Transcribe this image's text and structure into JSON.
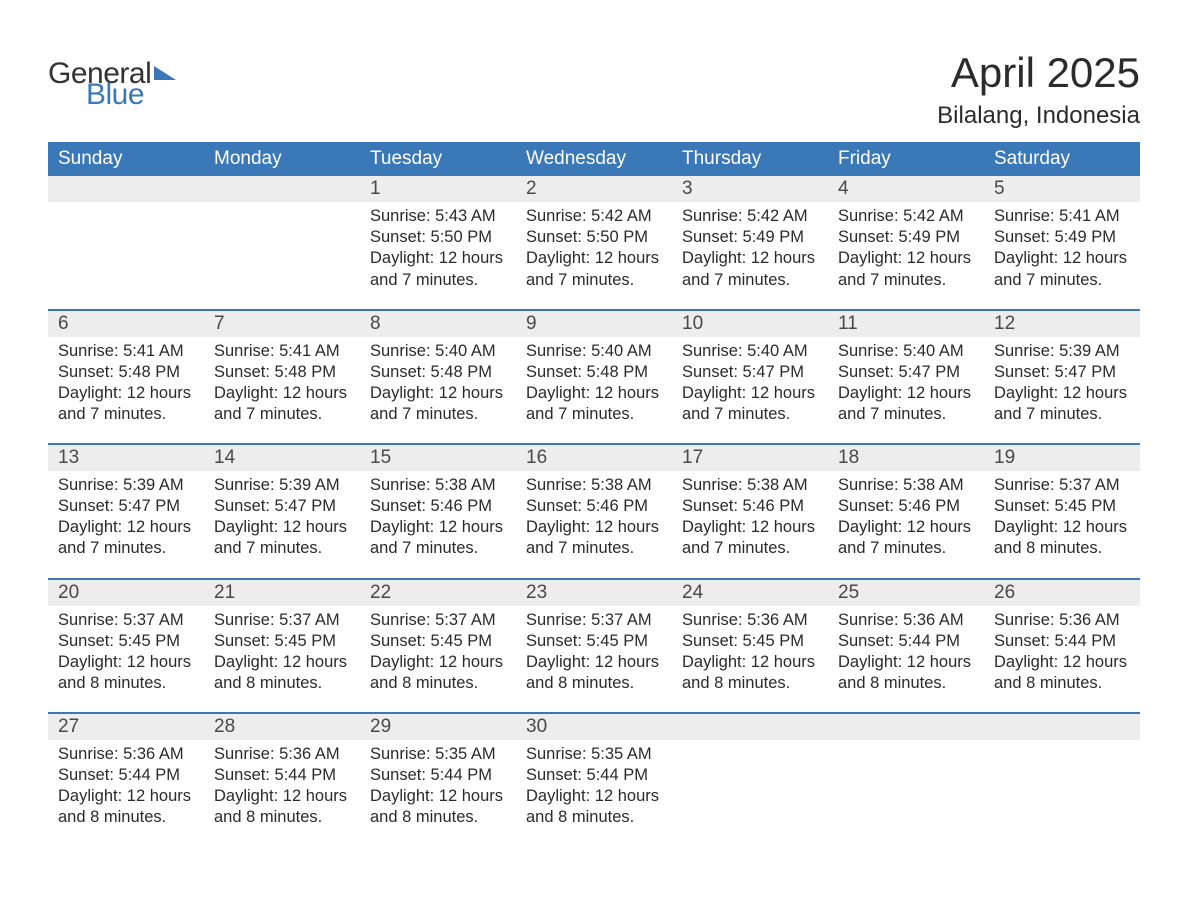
{
  "logo": {
    "word1": "General",
    "word2": "Blue"
  },
  "title": "April 2025",
  "location": "Bilalang, Indonesia",
  "colors": {
    "header_bg": "#3a78b8",
    "header_text": "#ffffff",
    "daynum_bg": "#ededed",
    "row_divider": "#3a78b8",
    "body_text": "#2b2b2b",
    "logo_gray": "#333333",
    "logo_blue": "#3a78b8",
    "page_bg": "#ffffff"
  },
  "typography": {
    "title_fontsize": 42,
    "location_fontsize": 24,
    "header_fontsize": 19,
    "daynum_fontsize": 19,
    "body_fontsize": 16.5,
    "font_family": "Arial"
  },
  "layout": {
    "columns": 7,
    "rows": 5,
    "first_day_column_index": 2
  },
  "labels": {
    "sunrise": "Sunrise:",
    "sunset": "Sunset:",
    "daylight": "Daylight:"
  },
  "columns": [
    "Sunday",
    "Monday",
    "Tuesday",
    "Wednesday",
    "Thursday",
    "Friday",
    "Saturday"
  ],
  "weeks": [
    [
      null,
      null,
      {
        "num": "1",
        "sunrise": "5:43 AM",
        "sunset": "5:50 PM",
        "daylight": "12 hours and 7 minutes."
      },
      {
        "num": "2",
        "sunrise": "5:42 AM",
        "sunset": "5:50 PM",
        "daylight": "12 hours and 7 minutes."
      },
      {
        "num": "3",
        "sunrise": "5:42 AM",
        "sunset": "5:49 PM",
        "daylight": "12 hours and 7 minutes."
      },
      {
        "num": "4",
        "sunrise": "5:42 AM",
        "sunset": "5:49 PM",
        "daylight": "12 hours and 7 minutes."
      },
      {
        "num": "5",
        "sunrise": "5:41 AM",
        "sunset": "5:49 PM",
        "daylight": "12 hours and 7 minutes."
      }
    ],
    [
      {
        "num": "6",
        "sunrise": "5:41 AM",
        "sunset": "5:48 PM",
        "daylight": "12 hours and 7 minutes."
      },
      {
        "num": "7",
        "sunrise": "5:41 AM",
        "sunset": "5:48 PM",
        "daylight": "12 hours and 7 minutes."
      },
      {
        "num": "8",
        "sunrise": "5:40 AM",
        "sunset": "5:48 PM",
        "daylight": "12 hours and 7 minutes."
      },
      {
        "num": "9",
        "sunrise": "5:40 AM",
        "sunset": "5:48 PM",
        "daylight": "12 hours and 7 minutes."
      },
      {
        "num": "10",
        "sunrise": "5:40 AM",
        "sunset": "5:47 PM",
        "daylight": "12 hours and 7 minutes."
      },
      {
        "num": "11",
        "sunrise": "5:40 AM",
        "sunset": "5:47 PM",
        "daylight": "12 hours and 7 minutes."
      },
      {
        "num": "12",
        "sunrise": "5:39 AM",
        "sunset": "5:47 PM",
        "daylight": "12 hours and 7 minutes."
      }
    ],
    [
      {
        "num": "13",
        "sunrise": "5:39 AM",
        "sunset": "5:47 PM",
        "daylight": "12 hours and 7 minutes."
      },
      {
        "num": "14",
        "sunrise": "5:39 AM",
        "sunset": "5:47 PM",
        "daylight": "12 hours and 7 minutes."
      },
      {
        "num": "15",
        "sunrise": "5:38 AM",
        "sunset": "5:46 PM",
        "daylight": "12 hours and 7 minutes."
      },
      {
        "num": "16",
        "sunrise": "5:38 AM",
        "sunset": "5:46 PM",
        "daylight": "12 hours and 7 minutes."
      },
      {
        "num": "17",
        "sunrise": "5:38 AM",
        "sunset": "5:46 PM",
        "daylight": "12 hours and 7 minutes."
      },
      {
        "num": "18",
        "sunrise": "5:38 AM",
        "sunset": "5:46 PM",
        "daylight": "12 hours and 7 minutes."
      },
      {
        "num": "19",
        "sunrise": "5:37 AM",
        "sunset": "5:45 PM",
        "daylight": "12 hours and 8 minutes."
      }
    ],
    [
      {
        "num": "20",
        "sunrise": "5:37 AM",
        "sunset": "5:45 PM",
        "daylight": "12 hours and 8 minutes."
      },
      {
        "num": "21",
        "sunrise": "5:37 AM",
        "sunset": "5:45 PM",
        "daylight": "12 hours and 8 minutes."
      },
      {
        "num": "22",
        "sunrise": "5:37 AM",
        "sunset": "5:45 PM",
        "daylight": "12 hours and 8 minutes."
      },
      {
        "num": "23",
        "sunrise": "5:37 AM",
        "sunset": "5:45 PM",
        "daylight": "12 hours and 8 minutes."
      },
      {
        "num": "24",
        "sunrise": "5:36 AM",
        "sunset": "5:45 PM",
        "daylight": "12 hours and 8 minutes."
      },
      {
        "num": "25",
        "sunrise": "5:36 AM",
        "sunset": "5:44 PM",
        "daylight": "12 hours and 8 minutes."
      },
      {
        "num": "26",
        "sunrise": "5:36 AM",
        "sunset": "5:44 PM",
        "daylight": "12 hours and 8 minutes."
      }
    ],
    [
      {
        "num": "27",
        "sunrise": "5:36 AM",
        "sunset": "5:44 PM",
        "daylight": "12 hours and 8 minutes."
      },
      {
        "num": "28",
        "sunrise": "5:36 AM",
        "sunset": "5:44 PM",
        "daylight": "12 hours and 8 minutes."
      },
      {
        "num": "29",
        "sunrise": "5:35 AM",
        "sunset": "5:44 PM",
        "daylight": "12 hours and 8 minutes."
      },
      {
        "num": "30",
        "sunrise": "5:35 AM",
        "sunset": "5:44 PM",
        "daylight": "12 hours and 8 minutes."
      },
      null,
      null,
      null
    ]
  ]
}
